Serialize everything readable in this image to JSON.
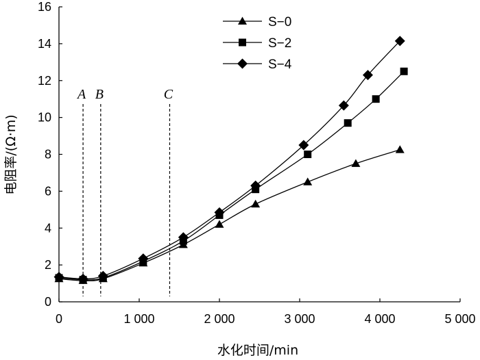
{
  "chart_data": {
    "type": "line",
    "title": "",
    "xlabel": "水化时间/min",
    "ylabel": "电阻率/(Ω·m)",
    "xlim": [
      0,
      5000
    ],
    "ylim": [
      0,
      16
    ],
    "x_ticks": [
      0,
      1000,
      2000,
      3000,
      4000,
      5000
    ],
    "x_tick_labels": [
      "0",
      "1 000",
      "2 000",
      "3 000",
      "4 000",
      "5 000"
    ],
    "y_ticks": [
      0,
      2,
      4,
      6,
      8,
      10,
      12,
      14,
      16
    ],
    "y_tick_labels": [
      "0",
      "2",
      "4",
      "6",
      "8",
      "10",
      "12",
      "14",
      "16"
    ],
    "legend_position": "top-center",
    "series": [
      {
        "name": "S−0",
        "marker": "triangle",
        "points": [
          [
            0,
            1.25
          ],
          [
            300,
            1.15
          ],
          [
            550,
            1.25
          ],
          [
            1050,
            2.1
          ],
          [
            1550,
            3.1
          ],
          [
            2000,
            4.2
          ],
          [
            2450,
            5.3
          ],
          [
            3100,
            6.5
          ],
          [
            3700,
            7.5
          ],
          [
            4250,
            8.25
          ]
        ]
      },
      {
        "name": "S−2",
        "marker": "square",
        "points": [
          [
            0,
            1.3
          ],
          [
            300,
            1.2
          ],
          [
            550,
            1.3
          ],
          [
            1050,
            2.2
          ],
          [
            1550,
            3.3
          ],
          [
            2000,
            4.7
          ],
          [
            2450,
            6.1
          ],
          [
            3100,
            8.0
          ],
          [
            3600,
            9.7
          ],
          [
            3950,
            11.0
          ],
          [
            4300,
            12.5
          ]
        ]
      },
      {
        "name": "S−4",
        "marker": "diamond",
        "points": [
          [
            0,
            1.35
          ],
          [
            300,
            1.25
          ],
          [
            550,
            1.4
          ],
          [
            1050,
            2.35
          ],
          [
            1550,
            3.5
          ],
          [
            2000,
            4.85
          ],
          [
            2450,
            6.3
          ],
          [
            3050,
            8.5
          ],
          [
            3550,
            10.65
          ],
          [
            3850,
            12.3
          ],
          [
            4250,
            14.15
          ]
        ]
      }
    ],
    "reference_lines": [
      {
        "label": "A",
        "x": 300
      },
      {
        "label": "B",
        "x": 520
      },
      {
        "label": "C",
        "x": 1380
      }
    ]
  }
}
